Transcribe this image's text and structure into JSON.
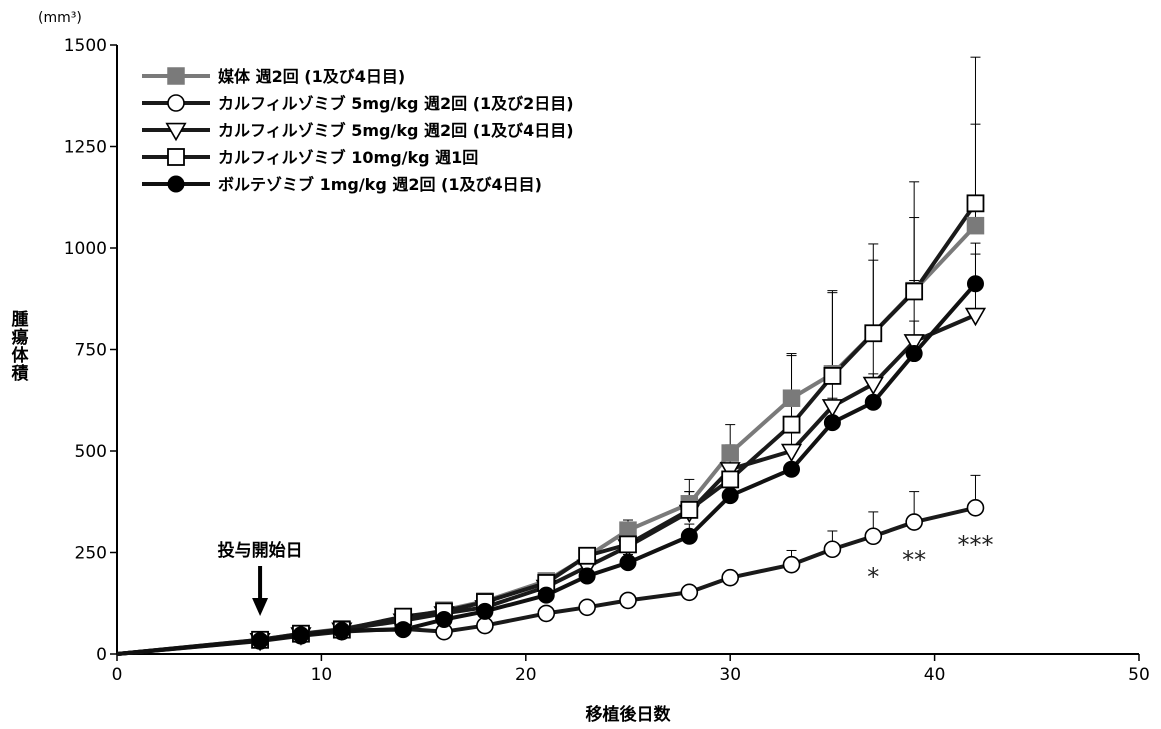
{
  "chart_data": {
    "type": "line",
    "unit_label": "(mm³)",
    "ylabel": "腫瘍体積",
    "xlabel": "移植後日数",
    "xlim": [
      0,
      50
    ],
    "ylim": [
      0,
      1500
    ],
    "x_ticks": [
      0,
      10,
      20,
      30,
      40,
      50
    ],
    "y_ticks": [
      0,
      250,
      500,
      750,
      1000,
      1250,
      1500
    ],
    "legend_position": "top-left",
    "grid": false,
    "series": [
      {
        "name": "媒体 週2回 (1及び4日目)",
        "color": "#7a7a7a",
        "marker": "filled-square",
        "x": [
          0,
          7,
          9,
          11,
          14,
          16,
          18,
          21,
          23,
          25,
          28,
          30,
          33,
          35,
          37,
          39,
          42
        ],
        "y": [
          0,
          35,
          50,
          62,
          88,
          108,
          130,
          180,
          240,
          305,
          370,
          495,
          630,
          690,
          790,
          895,
          1055
        ],
        "err": [
          0,
          4,
          5,
          6,
          8,
          10,
          12,
          15,
          20,
          25,
          60,
          70,
          110,
          200,
          180,
          180,
          250
        ]
      },
      {
        "name": "カルフィルゾミブ 5mg/kg 週2回 (1及び2日目)",
        "color": "#1a1a1a",
        "marker": "open-circle",
        "x": [
          0,
          7,
          9,
          11,
          14,
          16,
          18,
          21,
          23,
          25,
          28,
          30,
          33,
          35,
          37,
          39,
          42
        ],
        "y": [
          0,
          32,
          45,
          55,
          62,
          55,
          70,
          100,
          115,
          132,
          152,
          188,
          220,
          258,
          290,
          325,
          360
        ],
        "err": [
          0,
          3,
          4,
          5,
          6,
          6,
          7,
          8,
          9,
          10,
          12,
          15,
          35,
          45,
          60,
          75,
          80
        ]
      },
      {
        "name": "カルフィルゾミブ 5mg/kg 週2回 (1及び4日目)",
        "color": "#1a1a1a",
        "marker": "open-triangle-down",
        "x": [
          0,
          7,
          9,
          11,
          14,
          16,
          18,
          21,
          23,
          25,
          28,
          30,
          33,
          35,
          37,
          39,
          42
        ],
        "y": [
          0,
          34,
          48,
          60,
          82,
          100,
          115,
          165,
          215,
          265,
          350,
          455,
          500,
          610,
          665,
          770,
          835
        ],
        "err": [
          0,
          4,
          5,
          6,
          8,
          9,
          10,
          14,
          18,
          22,
          50,
          60,
          70,
          100,
          110,
          150,
          150
        ]
      },
      {
        "name": "カルフィルゾミブ 10mg/kg 週1回",
        "color": "#1a1a1a",
        "marker": "open-square",
        "x": [
          0,
          7,
          9,
          11,
          14,
          16,
          18,
          21,
          23,
          25,
          28,
          30,
          33,
          35,
          37,
          39,
          42
        ],
        "y": [
          0,
          35,
          50,
          60,
          92,
          105,
          128,
          175,
          242,
          270,
          355,
          430,
          565,
          685,
          790,
          893,
          1110
        ],
        "err": [
          0,
          4,
          5,
          6,
          8,
          10,
          12,
          15,
          20,
          25,
          45,
          50,
          170,
          210,
          220,
          270,
          360
        ]
      },
      {
        "name": "ボルテゾミブ 1mg/kg 週2回 (1及び4日目)",
        "color": "#111111",
        "marker": "filled-circle",
        "x": [
          0,
          7,
          9,
          11,
          14,
          16,
          18,
          21,
          23,
          25,
          28,
          30,
          33,
          35,
          37,
          39,
          42
        ],
        "y": [
          0,
          33,
          47,
          58,
          60,
          85,
          105,
          145,
          192,
          225,
          290,
          390,
          455,
          570,
          620,
          740,
          912
        ],
        "err": [
          0,
          4,
          5,
          6,
          7,
          9,
          10,
          13,
          16,
          20,
          30,
          40,
          50,
          60,
          70,
          80,
          100
        ]
      }
    ],
    "annotations": [
      {
        "text": "投与開始日",
        "x": 7,
        "type": "arrow"
      }
    ],
    "significance": [
      {
        "text": "*",
        "x": 37
      },
      {
        "text": "**",
        "x": 39
      },
      {
        "text": "***",
        "x": 42
      }
    ]
  }
}
